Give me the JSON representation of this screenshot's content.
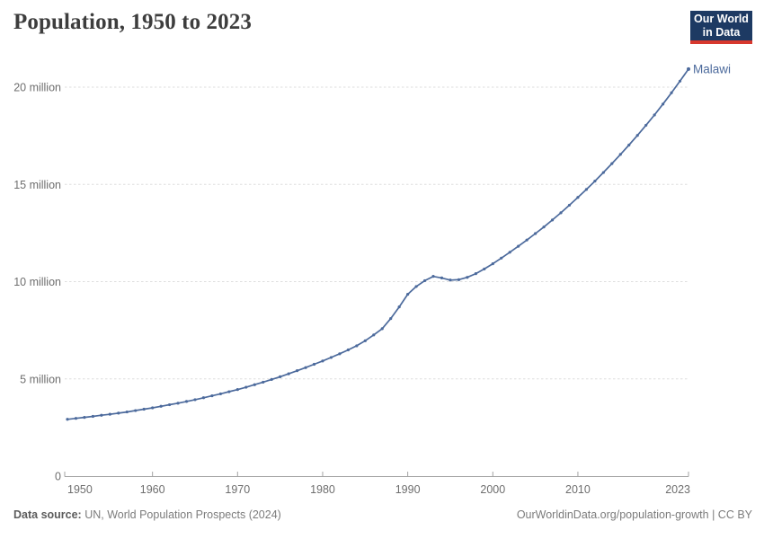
{
  "header": {
    "title": "Population, 1950 to 2023"
  },
  "logo": {
    "line1": "Our World",
    "line2": "in Data",
    "bg_color": "#1d3a63",
    "accent_color": "#d7382e"
  },
  "chart_data": {
    "type": "line",
    "title": "Population, 1950 to 2023",
    "entity": "Malawi",
    "series_color": "#4c6a9c",
    "grid": true,
    "legend_position": "end-of-line-label",
    "xlabel": "",
    "ylabel": "",
    "values_unit": "millions of people",
    "ylim_millions": [
      0,
      21.5
    ],
    "xlim": [
      1950,
      2023
    ],
    "x_ticks": [
      1950,
      1960,
      1970,
      1980,
      1990,
      2000,
      2010,
      2023
    ],
    "y_ticks": [
      {
        "value": 0,
        "label": "0"
      },
      {
        "value": 5,
        "label": "5 million"
      },
      {
        "value": 10,
        "label": "10 million"
      },
      {
        "value": 15,
        "label": "15 million"
      },
      {
        "value": 20,
        "label": "20 million"
      }
    ],
    "years": [
      1950,
      1951,
      1952,
      1953,
      1954,
      1955,
      1956,
      1957,
      1958,
      1959,
      1960,
      1961,
      1962,
      1963,
      1964,
      1965,
      1966,
      1967,
      1968,
      1969,
      1970,
      1971,
      1972,
      1973,
      1974,
      1975,
      1976,
      1977,
      1978,
      1979,
      1980,
      1981,
      1982,
      1983,
      1984,
      1985,
      1986,
      1987,
      1988,
      1989,
      1990,
      1991,
      1992,
      1993,
      1994,
      1995,
      1996,
      1997,
      1998,
      1999,
      2000,
      2001,
      2002,
      2003,
      2004,
      2005,
      2006,
      2007,
      2008,
      2009,
      2010,
      2011,
      2012,
      2013,
      2014,
      2015,
      2016,
      2017,
      2018,
      2019,
      2020,
      2021,
      2022,
      2023
    ],
    "values_millions": [
      2.92,
      2.97,
      3.02,
      3.07,
      3.13,
      3.18,
      3.24,
      3.3,
      3.37,
      3.44,
      3.51,
      3.59,
      3.67,
      3.75,
      3.84,
      3.93,
      4.03,
      4.13,
      4.23,
      4.34,
      4.45,
      4.57,
      4.7,
      4.83,
      4.97,
      5.11,
      5.26,
      5.42,
      5.58,
      5.75,
      5.92,
      6.1,
      6.29,
      6.49,
      6.7,
      6.96,
      7.26,
      7.58,
      8.1,
      8.7,
      9.35,
      9.75,
      10.05,
      10.27,
      10.19,
      10.08,
      10.1,
      10.22,
      10.41,
      10.65,
      10.92,
      11.21,
      11.51,
      11.82,
      12.14,
      12.47,
      12.81,
      13.17,
      13.54,
      13.93,
      14.33,
      14.74,
      15.17,
      15.61,
      16.07,
      16.54,
      17.02,
      17.52,
      18.04,
      18.57,
      19.13,
      19.71,
      20.31,
      20.93
    ]
  },
  "footer": {
    "source_label": "Data source:",
    "source_text": " UN, World Population Prospects (2024)",
    "link_text": "OurWorldinData.org/population-growth",
    "license_suffix": " | CC BY"
  }
}
